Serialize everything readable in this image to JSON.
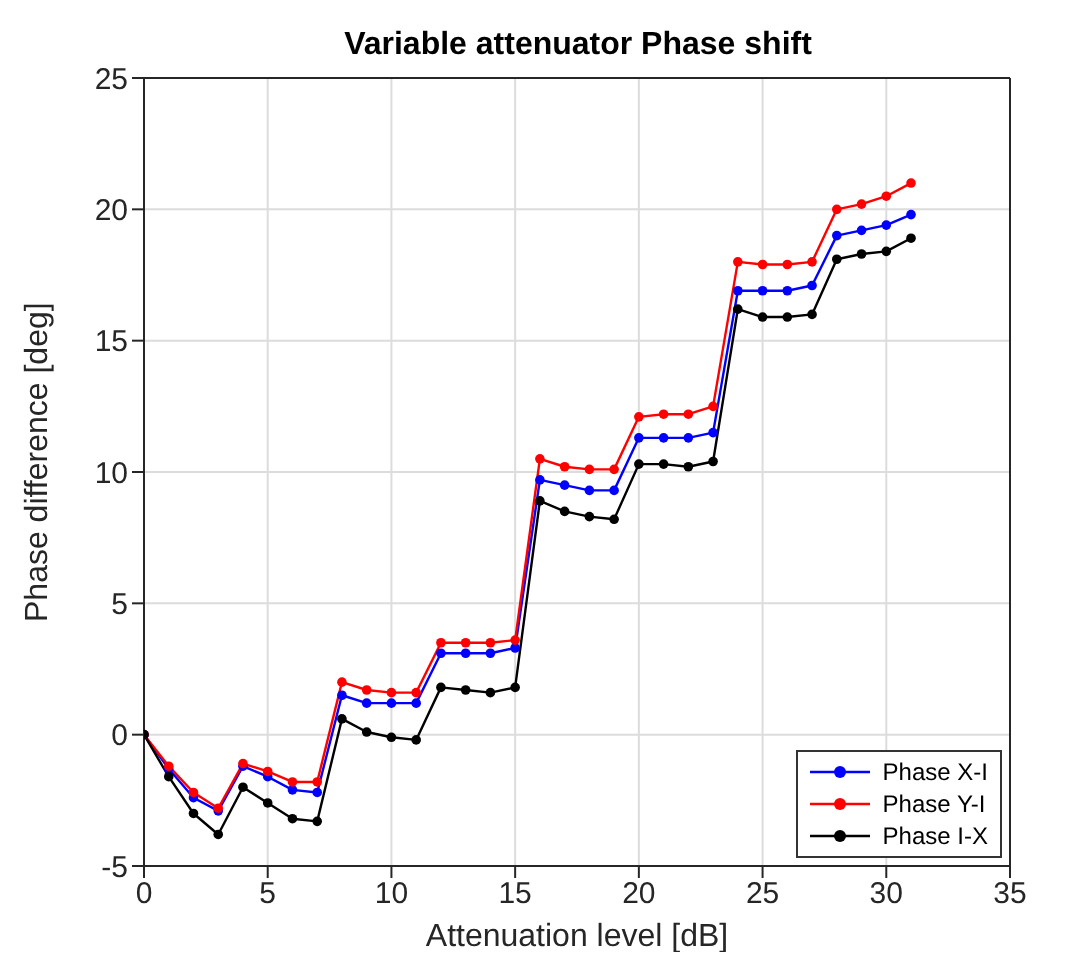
{
  "chart_data": {
    "type": "line",
    "title": "Variable attenuator Phase shift",
    "xlabel": "Attenuation level [dB]",
    "ylabel": "Phase difference [deg]",
    "x": [
      0,
      1,
      2,
      3,
      4,
      5,
      6,
      7,
      8,
      9,
      10,
      11,
      12,
      13,
      14,
      15,
      16,
      17,
      18,
      19,
      20,
      21,
      22,
      23,
      24,
      25,
      26,
      27,
      28,
      29,
      30,
      31
    ],
    "series": [
      {
        "name": "Phase X-I",
        "color": "#0000ff",
        "values": [
          0,
          -1.3,
          -2.4,
          -2.9,
          -1.2,
          -1.6,
          -2.1,
          -2.2,
          1.5,
          1.2,
          1.2,
          1.2,
          3.1,
          3.1,
          3.1,
          3.3,
          9.7,
          9.5,
          9.3,
          9.3,
          11.3,
          11.3,
          11.3,
          11.5,
          16.9,
          16.9,
          16.9,
          17.1,
          19.0,
          19.2,
          19.4,
          19.8
        ]
      },
      {
        "name": "Phase Y-I",
        "color": "#ff0000",
        "values": [
          0,
          -1.2,
          -2.2,
          -2.8,
          -1.1,
          -1.4,
          -1.8,
          -1.8,
          2.0,
          1.7,
          1.6,
          1.6,
          3.5,
          3.5,
          3.5,
          3.6,
          10.5,
          10.2,
          10.1,
          10.1,
          12.1,
          12.2,
          12.2,
          12.5,
          18.0,
          17.9,
          17.9,
          18.0,
          20.0,
          20.2,
          20.5,
          21.0
        ]
      },
      {
        "name": "Phase I-X",
        "color": "#000000",
        "values": [
          0,
          -1.6,
          -3.0,
          -3.8,
          -2.0,
          -2.6,
          -3.2,
          -3.3,
          0.6,
          0.1,
          -0.1,
          -0.2,
          1.8,
          1.7,
          1.6,
          1.8,
          8.9,
          8.5,
          8.3,
          8.2,
          10.3,
          10.3,
          10.2,
          10.4,
          16.2,
          15.9,
          15.9,
          16.0,
          18.1,
          18.3,
          18.4,
          18.9
        ]
      }
    ],
    "xlim": [
      0,
      35
    ],
    "xticks": [
      0,
      5,
      10,
      15,
      20,
      25,
      30,
      35
    ],
    "ylim": [
      -5,
      25
    ],
    "yticks": [
      -5,
      0,
      5,
      10,
      15,
      20,
      25
    ],
    "grid": true,
    "legend": "bottom right",
    "marker": "circle",
    "line_style": "solid"
  }
}
